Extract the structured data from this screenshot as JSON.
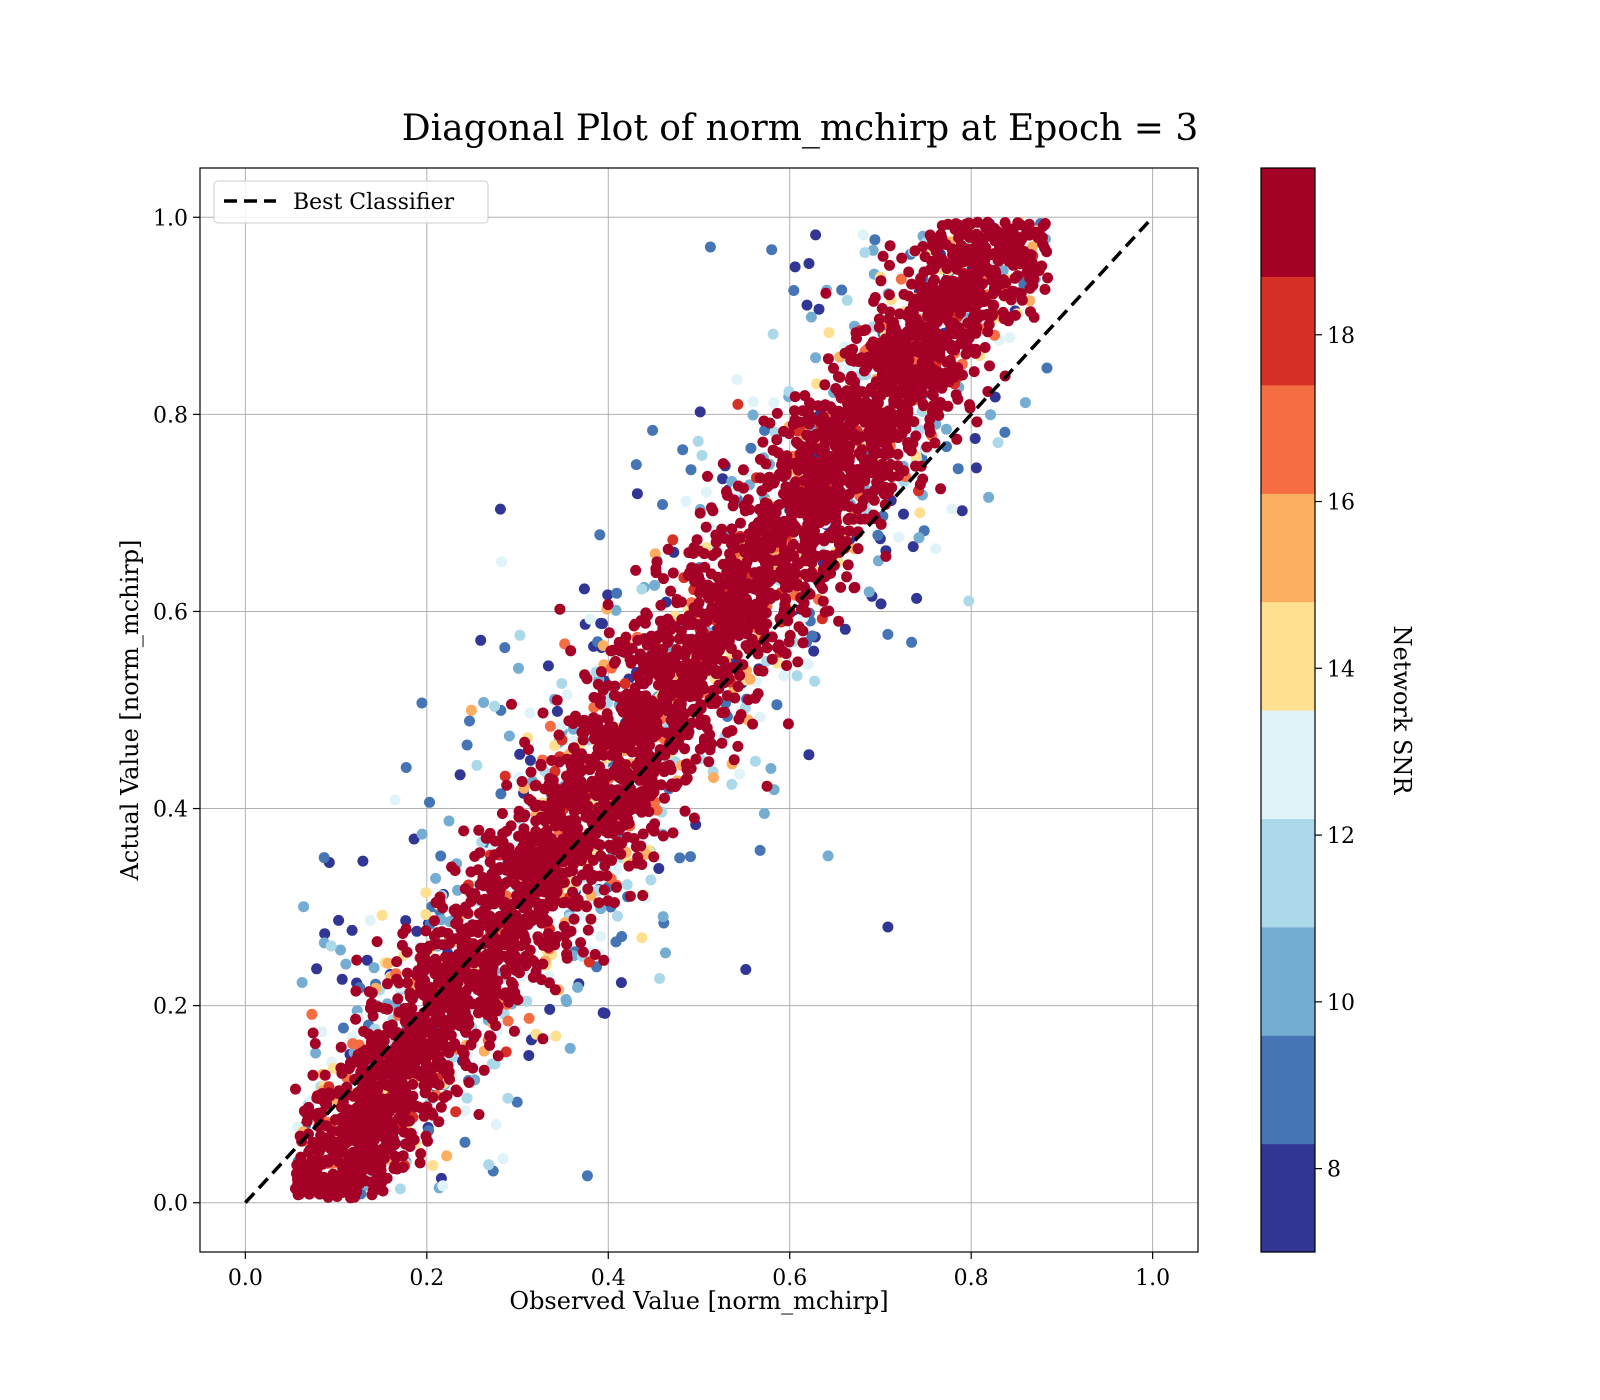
{
  "chart_data": {
    "type": "scatter",
    "title": "Diagonal Plot of norm_mchirp at Epoch = 3",
    "xlabel": "Observed Value [norm_mchirp]",
    "ylabel": "Actual Value [norm_mchirp]",
    "xlim": [
      -0.05,
      1.05
    ],
    "ylim": [
      -0.05,
      1.05
    ],
    "xticks": [
      "0.0",
      "0.2",
      "0.4",
      "0.6",
      "0.8",
      "1.0"
    ],
    "yticks": [
      "0.0",
      "0.2",
      "0.4",
      "0.6",
      "0.8",
      "1.0"
    ],
    "grid": true,
    "legend": {
      "placement": "top-left",
      "entries": [
        {
          "label": "Best Classifier",
          "style": "dashed",
          "color": "#000000"
        }
      ]
    },
    "reference_line": {
      "name": "Best Classifier",
      "x": [
        0.0,
        1.0
      ],
      "y": [
        0.0,
        1.0
      ]
    },
    "scatter_description_values": {
      "approx_point_count": 5000,
      "x_range": [
        0.06,
        0.88
      ],
      "y_range": [
        0.0,
        1.0
      ],
      "trend": "points cluster around y = 1.14*x - 0.08, spread widens for low SNR"
    },
    "colorbar": {
      "label": "Network SNR",
      "range": [
        7,
        20
      ],
      "ticks": [
        "8",
        "10",
        "12",
        "14",
        "16",
        "18"
      ],
      "tick_values": [
        8,
        10,
        12,
        14,
        16,
        18
      ],
      "colormap": "RdYlBu_r",
      "band_colors": [
        "#313695",
        "#4575b4",
        "#74add1",
        "#abd9e9",
        "#e0f3f8",
        "#fee090",
        "#fdae61",
        "#f46d43",
        "#d73027",
        "#a50026"
      ]
    }
  }
}
